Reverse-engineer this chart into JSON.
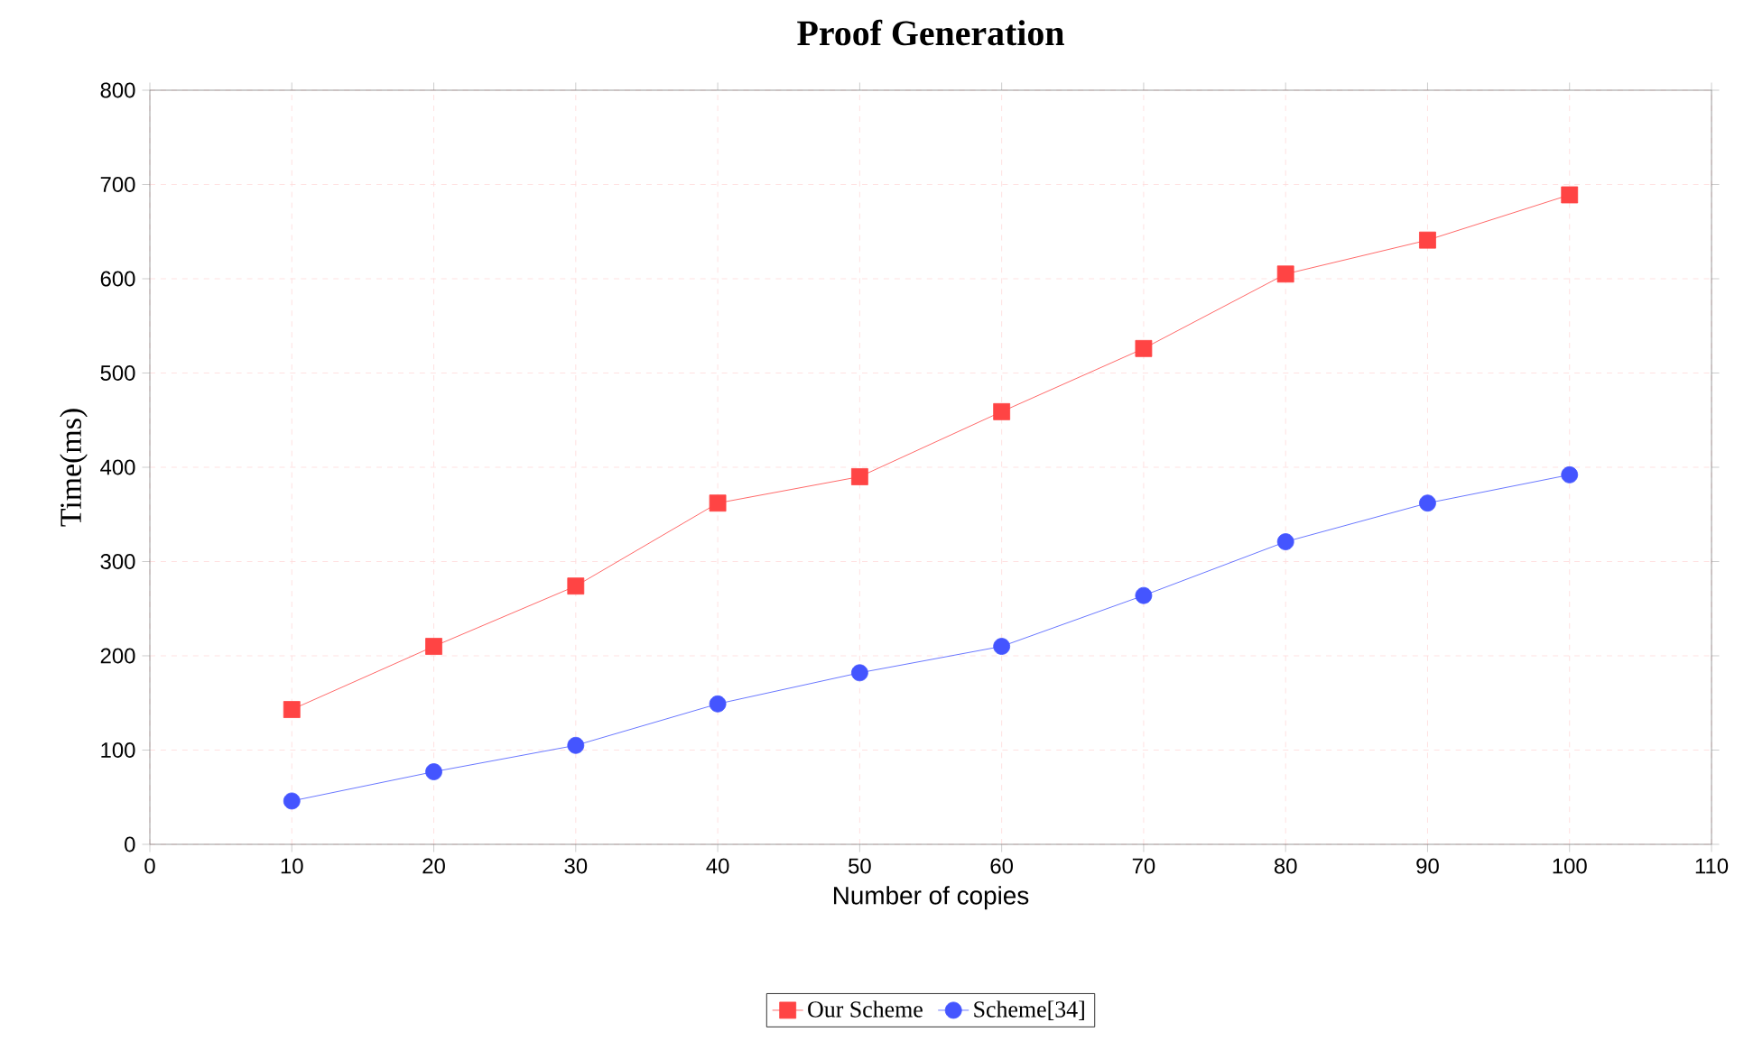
{
  "chart_data": {
    "type": "line",
    "title": "Proof Generation",
    "xlabel": "Number of copies",
    "ylabel": "Time(ms)",
    "x": [
      10,
      20,
      30,
      40,
      50,
      60,
      70,
      80,
      90,
      100
    ],
    "series": [
      {
        "name": "Our Scheme",
        "color": "#ff4444",
        "marker": "square",
        "values": [
          143,
          210,
          274,
          362,
          390,
          459,
          526,
          605,
          641,
          689
        ]
      },
      {
        "name": "Scheme[34]",
        "color": "#4455ff",
        "marker": "circle",
        "values": [
          46,
          77,
          105,
          149,
          182,
          210,
          264,
          321,
          362,
          392
        ]
      }
    ],
    "xlim": [
      0,
      110
    ],
    "xticks": [
      0,
      10,
      20,
      30,
      40,
      50,
      60,
      70,
      80,
      90,
      100,
      110
    ],
    "ylim": [
      0,
      800
    ],
    "yticks": [
      0,
      100,
      200,
      300,
      400,
      500,
      600,
      700,
      800
    ],
    "grid": true,
    "legend": "bottom",
    "line_style": "solid"
  }
}
